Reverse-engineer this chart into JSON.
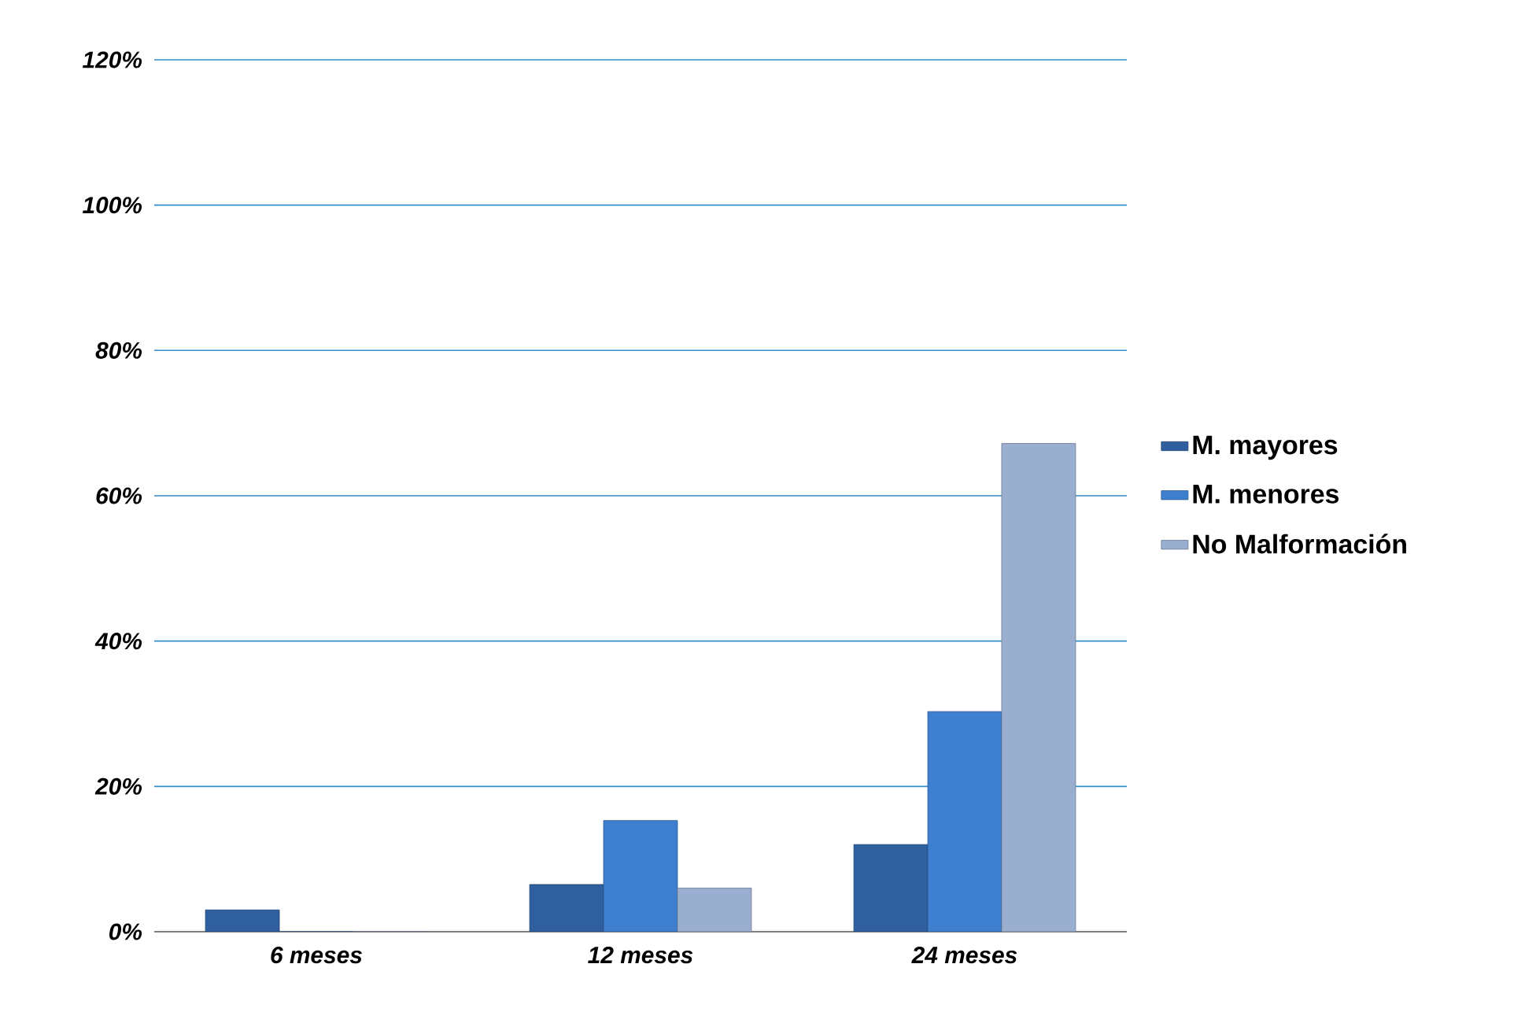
{
  "chart_data": {
    "type": "bar",
    "categories": [
      "6 meses",
      "12 meses",
      "24 meses"
    ],
    "series": [
      {
        "name": "M. mayores",
        "color": "#2f5f9e",
        "values": [
          3,
          6.5,
          12
        ]
      },
      {
        "name": "M. menores",
        "color": "#3f7fcf",
        "values": [
          0,
          15.3,
          30.3
        ]
      },
      {
        "name": "No Malformación",
        "color": "#9aaed0",
        "values": [
          0,
          6,
          67.2
        ]
      }
    ],
    "ylim": [
      0,
      120
    ],
    "yticks": [
      {
        "value": 0,
        "label": "0%"
      },
      {
        "value": 20,
        "label": "20%"
      },
      {
        "value": 40,
        "label": "40%"
      },
      {
        "value": 60,
        "label": "60%"
      },
      {
        "value": 80,
        "label": "80%"
      },
      {
        "value": 100,
        "label": "100%"
      },
      {
        "value": 120,
        "label": "120%"
      }
    ],
    "grid": "y",
    "legend": "right"
  }
}
